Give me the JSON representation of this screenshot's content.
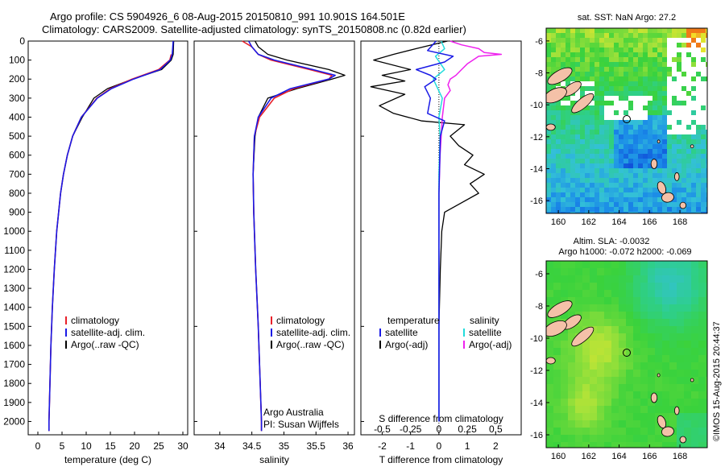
{
  "header": {
    "title_line1": "Argo profile: CS 5904926_6 08-Aug-2015 20150810_991 10.901S 164.501E",
    "title_line2": "Climatology: CARS2009. Satellite-adjusted climatology: synTS_20150808.nc (0.82d earlier)"
  },
  "stamp": "©IMOS 15-Aug-2015 20:44:37",
  "colors": {
    "climatology": "#e8202a",
    "satellite": "#1a1ae6",
    "argo": "#000000",
    "salinity_satellite": "#22dcdc",
    "salinity_argo": "#ee22ee"
  },
  "chart_data": [
    {
      "type": "line",
      "panel": "temperature",
      "xlabel": "temperature (deg C)",
      "ylabel": "",
      "xlim": [
        -2,
        31
      ],
      "ylim": [
        2070,
        0
      ],
      "xticks": [
        "0",
        "5",
        "10",
        "15",
        "20",
        "25",
        "30"
      ],
      "yticks": [
        "0",
        "100",
        "200",
        "300",
        "400",
        "500",
        "600",
        "700",
        "800",
        "900",
        "1000",
        "1100",
        "1200",
        "1300",
        "1400",
        "1500",
        "1600",
        "1700",
        "1800",
        "1900",
        "2000"
      ],
      "legend": [
        "climatology",
        "satellite-adj. clim.",
        "Argo(..raw -QC)"
      ],
      "series": [
        {
          "name": "climatology",
          "depth": [
            70,
            100,
            150,
            200,
            250,
            300,
            400,
            500,
            600,
            700,
            800,
            900,
            1000,
            1200,
            1400,
            1600,
            1800,
            2000,
            2050
          ],
          "values": [
            27.6,
            27.3,
            25,
            19.5,
            15,
            12.2,
            9,
            7.2,
            6.1,
            5.3,
            4.7,
            4.3,
            3.9,
            3.4,
            3,
            2.7,
            2.5,
            2.3,
            2.3
          ]
        },
        {
          "name": "satellite-adj. clim.",
          "depth": [
            0,
            70,
            100,
            150,
            200,
            250,
            300,
            400,
            500,
            600,
            700,
            800,
            900,
            1000,
            1200,
            1400,
            1600,
            1800,
            2000,
            2050
          ],
          "values": [
            28,
            27.8,
            27.4,
            25.3,
            19.8,
            15.2,
            12.3,
            9,
            7.2,
            6.1,
            5.3,
            4.7,
            4.3,
            3.9,
            3.4,
            3,
            2.7,
            2.5,
            2.3,
            2.3
          ]
        },
        {
          "name": "Argo(..raw -QC)",
          "depth": [
            0,
            70,
            100,
            150,
            200,
            250,
            300,
            400,
            500,
            600,
            700,
            800,
            900,
            1000,
            1200,
            1400,
            1600,
            1800,
            2000,
            2050
          ],
          "values": [
            28.1,
            28,
            27.6,
            25.6,
            19.6,
            14.4,
            11.6,
            9.2,
            7.2,
            6.1,
            5.3,
            4.7,
            4.3,
            3.9,
            3.4,
            3,
            2.7,
            2.5,
            2.3,
            2.3
          ]
        }
      ],
      "annotation": []
    },
    {
      "type": "line",
      "panel": "salinity",
      "xlabel": "salinity",
      "xlim": [
        33.6,
        36.1
      ],
      "ylim": [
        2070,
        0
      ],
      "xticks": [
        "34",
        "34.5",
        "35",
        "35.5",
        "36"
      ],
      "legend": [
        "climatology",
        "satellite-adj. clim.",
        "Argo(..raw -QC)"
      ],
      "series": [
        {
          "name": "climatology",
          "depth": [
            0,
            30,
            70,
            100,
            150,
            180,
            200,
            250,
            300,
            400,
            500,
            700,
            900,
            1200,
            1500,
            2000,
            2050
          ],
          "values": [
            34.35,
            34.5,
            34.6,
            34.8,
            35.4,
            35.75,
            35.7,
            35.15,
            34.85,
            34.62,
            34.54,
            34.52,
            34.53,
            34.56,
            34.6,
            34.65,
            34.65
          ]
        },
        {
          "name": "satellite-adj. clim.",
          "depth": [
            0,
            30,
            70,
            100,
            150,
            180,
            200,
            250,
            300,
            400,
            500,
            700,
            900,
            1200,
            1500,
            2000,
            2050
          ],
          "values": [
            34.45,
            34.5,
            34.6,
            34.85,
            35.45,
            35.8,
            35.7,
            35.1,
            34.8,
            34.6,
            34.54,
            34.52,
            34.53,
            34.56,
            34.6,
            34.65,
            34.65
          ]
        },
        {
          "name": "Argo(..raw -QC)",
          "depth": [
            0,
            30,
            70,
            100,
            150,
            180,
            200,
            250,
            300,
            400,
            500,
            700,
            900,
            1200,
            1500,
            2000,
            2050
          ],
          "values": [
            34.55,
            34.6,
            34.75,
            35.05,
            35.7,
            35.95,
            35.75,
            35.2,
            34.75,
            34.6,
            34.55,
            34.52,
            34.53,
            34.56,
            34.6,
            34.65,
            34.65
          ]
        }
      ],
      "annotation": [
        "Argo Australia",
        "PI: Susan Wijffels"
      ]
    },
    {
      "type": "line",
      "panel": "differences",
      "xlabel_top": "S difference from climatology",
      "xticks_top": [
        "-0.5",
        "-0.25",
        "0",
        "0.25",
        "0.5"
      ],
      "xlabel": "T difference from climatology",
      "xticks": [
        "-2",
        "-1",
        "0",
        "1",
        "2"
      ],
      "xlim": [
        -2.75,
        2.9
      ],
      "ylim": [
        2070,
        0
      ],
      "legend_temperature": [
        "temperature",
        "satellite",
        "Argo(-adj)"
      ],
      "legend_salinity": [
        "salinity",
        "satellite",
        "Argo(-adj)"
      ],
      "series": [
        {
          "name": "T satellite",
          "depth": [
            0,
            50,
            80,
            110,
            150,
            180,
            200,
            240,
            300,
            380,
            420,
            500,
            800,
            1200,
            1600,
            2000
          ],
          "values": [
            -0.1,
            -0.4,
            0.5,
            0.2,
            -0.8,
            -0.3,
            -0.1,
            -0.5,
            -0.3,
            -0.4,
            0.2,
            0.05,
            0,
            0,
            0,
            0
          ]
        },
        {
          "name": "T Argo(-adj)",
          "depth": [
            0,
            40,
            70,
            100,
            150,
            180,
            210,
            240,
            280,
            340,
            380,
            420,
            440,
            500,
            550,
            600,
            650,
            700,
            750,
            800,
            850,
            900,
            1000,
            1200,
            1500,
            1800,
            2000
          ],
          "values": [
            0.3,
            -0.8,
            -1.6,
            -2.3,
            -1.0,
            -2.0,
            -1.2,
            -2.4,
            -1.2,
            -2.1,
            -1.6,
            -0.6,
            0.9,
            0.4,
            0.7,
            1.2,
            0.9,
            1.6,
            1.1,
            1.4,
            0.8,
            0.2,
            0.1,
            0.05,
            0,
            0,
            0
          ]
        },
        {
          "name": "S satellite",
          "depth": [
            0,
            40,
            80,
            150,
            200,
            300,
            400,
            500,
            700,
            1000,
            1500,
            2000
          ],
          "values": [
            0.02,
            0.05,
            -0.03,
            0.05,
            -0.05,
            0.03,
            0,
            0.01,
            0,
            0,
            0,
            0
          ]
        },
        {
          "name": "S Argo(-adj)",
          "depth": [
            0,
            20,
            40,
            60,
            70,
            80,
            100,
            120,
            150,
            180,
            200,
            230,
            260,
            300,
            400,
            500,
            600,
            800,
            1000,
            1500,
            2000
          ],
          "values": [
            0.1,
            0.2,
            0.35,
            0.4,
            0.55,
            0.35,
            0.3,
            0.25,
            0.2,
            0.15,
            0.1,
            0.08,
            0.1,
            0.05,
            0.03,
            0.02,
            0.01,
            0,
            0,
            0,
            0
          ]
        }
      ]
    },
    {
      "type": "heatmap",
      "panel": "sst_map",
      "title": "sat. SST: NaN Argo: 27.2",
      "xticks": [
        "160",
        "162",
        "164",
        "166",
        "168"
      ],
      "yticks": [
        "-6",
        "-8",
        "-10",
        "-12",
        "-14",
        "-16"
      ],
      "xlim": [
        159.2,
        169.8
      ],
      "ylim": [
        -16.8,
        -5.2
      ],
      "marker": {
        "lon": 164.501,
        "lat": -10.901
      }
    },
    {
      "type": "heatmap",
      "panel": "sla_map",
      "title_line1": "Altim. SLA: -0.0032",
      "title_line2": "Argo h1000: -0.072 h2000: -0.069",
      "xticks": [
        "160",
        "162",
        "164",
        "166",
        "168"
      ],
      "yticks": [
        "-6",
        "-8",
        "-10",
        "-12",
        "-14",
        "-16"
      ],
      "xlim": [
        159.2,
        169.8
      ],
      "ylim": [
        -16.8,
        -5.2
      ],
      "marker": {
        "lon": 164.501,
        "lat": -10.901
      }
    }
  ]
}
